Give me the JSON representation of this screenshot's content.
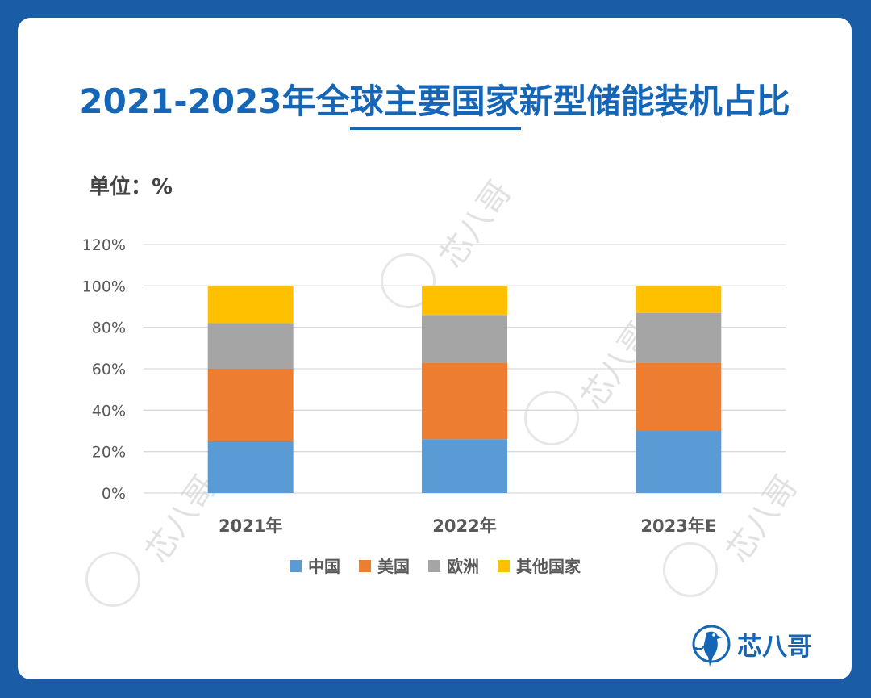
{
  "header": {
    "title": "2021-2023年全球主要国家新型储能装机占比",
    "unit": "单位：%"
  },
  "logo": {
    "brand": "芯八哥"
  },
  "watermark": {
    "text": "芯八哥"
  },
  "colors": {
    "background": "#1a5ca6",
    "title": "#1666b8",
    "china": "#5b9bd5",
    "usa": "#ed7d31",
    "europe": "#a5a5a5",
    "other": "#ffc000",
    "grid": "#d9d9d9"
  },
  "chart_data": {
    "type": "bar",
    "stacked": true,
    "categories": [
      "2021年",
      "2022年",
      "2023年E"
    ],
    "series": [
      {
        "name": "中国",
        "color": "#5b9bd5",
        "values": [
          25,
          26,
          30
        ]
      },
      {
        "name": "美国",
        "color": "#ed7d31",
        "values": [
          35,
          37,
          33
        ]
      },
      {
        "name": "欧洲",
        "color": "#a5a5a5",
        "values": [
          22,
          23,
          24
        ]
      },
      {
        "name": "其他国家",
        "color": "#ffc000",
        "values": [
          18,
          14,
          13
        ]
      }
    ],
    "y_ticks": [
      "0%",
      "20%",
      "40%",
      "60%",
      "80%",
      "100%",
      "120%"
    ],
    "ylim": [
      0,
      120
    ],
    "grid": true,
    "legend_position": "bottom"
  }
}
